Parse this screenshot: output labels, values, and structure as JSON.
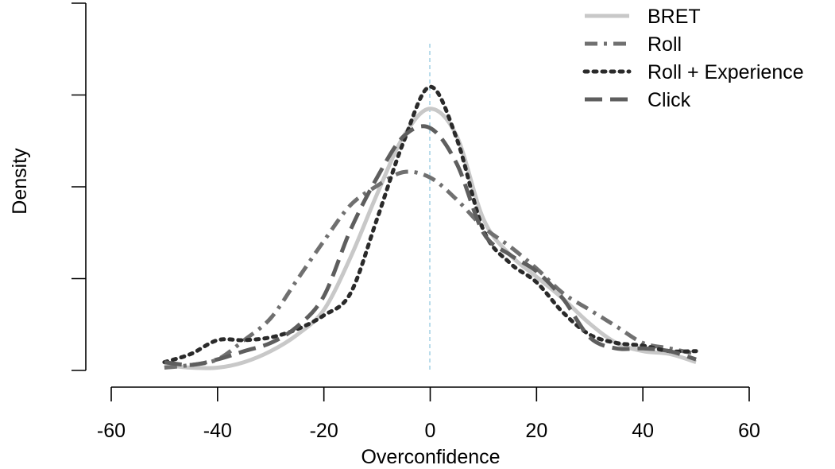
{
  "chart_data": {
    "type": "line",
    "title": "",
    "xlabel": "Overconfidence",
    "ylabel": "Density",
    "xlim": [
      -60,
      60
    ],
    "ylim": [
      0,
      0.04
    ],
    "x_ticks": [
      -60,
      -40,
      -20,
      0,
      20,
      40,
      60
    ],
    "x_tick_labels": [
      "-60",
      "-40",
      "-20",
      "0",
      "20",
      "40",
      "60"
    ],
    "y_ticks": [
      0,
      0.01,
      0.02,
      0.03,
      0.04
    ],
    "y_tick_labels_shown": false,
    "reference_line": {
      "x": 0,
      "color": "#a9d3e6",
      "style": "dashed"
    },
    "legend_position": "top-right",
    "series": [
      {
        "name": "BRET",
        "color": "#c8c8c8",
        "dash": "solid",
        "points": [
          [
            -50,
            0.0006
          ],
          [
            -45,
            0.0003
          ],
          [
            -40,
            0.0003
          ],
          [
            -35,
            0.0009
          ],
          [
            -30,
            0.0021
          ],
          [
            -25,
            0.0039
          ],
          [
            -20,
            0.0066
          ],
          [
            -15,
            0.0123
          ],
          [
            -10,
            0.0192
          ],
          [
            -5,
            0.0255
          ],
          [
            0,
            0.0285
          ],
          [
            5,
            0.0255
          ],
          [
            10,
            0.0165
          ],
          [
            15,
            0.0126
          ],
          [
            20,
            0.0102
          ],
          [
            25,
            0.0078
          ],
          [
            30,
            0.0051
          ],
          [
            35,
            0.003
          ],
          [
            40,
            0.0021
          ],
          [
            45,
            0.0018
          ],
          [
            50,
            0.0009
          ]
        ]
      },
      {
        "name": "Roll",
        "color": "#707070",
        "dash": "dashdot",
        "points": [
          [
            -50,
            0.0003
          ],
          [
            -45,
            0.0006
          ],
          [
            -40,
            0.0012
          ],
          [
            -35,
            0.0033
          ],
          [
            -30,
            0.0057
          ],
          [
            -25,
            0.0099
          ],
          [
            -20,
            0.0141
          ],
          [
            -15,
            0.018
          ],
          [
            -10,
            0.0201
          ],
          [
            -5,
            0.0216
          ],
          [
            0,
            0.021
          ],
          [
            5,
            0.0186
          ],
          [
            10,
            0.0156
          ],
          [
            15,
            0.0135
          ],
          [
            20,
            0.0111
          ],
          [
            25,
            0.0084
          ],
          [
            30,
            0.0066
          ],
          [
            35,
            0.0048
          ],
          [
            40,
            0.003
          ],
          [
            45,
            0.0024
          ],
          [
            50,
            0.0018
          ]
        ]
      },
      {
        "name": "Roll + Experience",
        "color": "#2a2a2a",
        "dash": "dotted",
        "points": [
          [
            -50,
            0.0009
          ],
          [
            -45,
            0.0018
          ],
          [
            -40,
            0.0033
          ],
          [
            -35,
            0.0033
          ],
          [
            -30,
            0.0036
          ],
          [
            -25,
            0.0045
          ],
          [
            -20,
            0.006
          ],
          [
            -15,
            0.0084
          ],
          [
            -10,
            0.0165
          ],
          [
            -5,
            0.0249
          ],
          [
            0,
            0.0309
          ],
          [
            5,
            0.0252
          ],
          [
            10,
            0.0153
          ],
          [
            15,
            0.0117
          ],
          [
            20,
            0.0096
          ],
          [
            25,
            0.0063
          ],
          [
            30,
            0.0039
          ],
          [
            35,
            0.003
          ],
          [
            40,
            0.0027
          ],
          [
            45,
            0.0021
          ],
          [
            50,
            0.0021
          ]
        ]
      },
      {
        "name": "Click",
        "color": "#5e5e5e",
        "dash": "longdash",
        "points": [
          [
            -50,
            0.0009
          ],
          [
            -45,
            0.0006
          ],
          [
            -40,
            0.0012
          ],
          [
            -35,
            0.0021
          ],
          [
            -30,
            0.003
          ],
          [
            -25,
            0.0048
          ],
          [
            -20,
            0.0081
          ],
          [
            -15,
            0.0153
          ],
          [
            -10,
            0.021
          ],
          [
            -5,
            0.0255
          ],
          [
            0,
            0.0264
          ],
          [
            5,
            0.0225
          ],
          [
            10,
            0.015
          ],
          [
            15,
            0.0126
          ],
          [
            20,
            0.0108
          ],
          [
            25,
            0.0078
          ],
          [
            30,
            0.0036
          ],
          [
            35,
            0.0024
          ],
          [
            40,
            0.0024
          ],
          [
            45,
            0.0021
          ],
          [
            50,
            0.0012
          ]
        ]
      }
    ]
  }
}
